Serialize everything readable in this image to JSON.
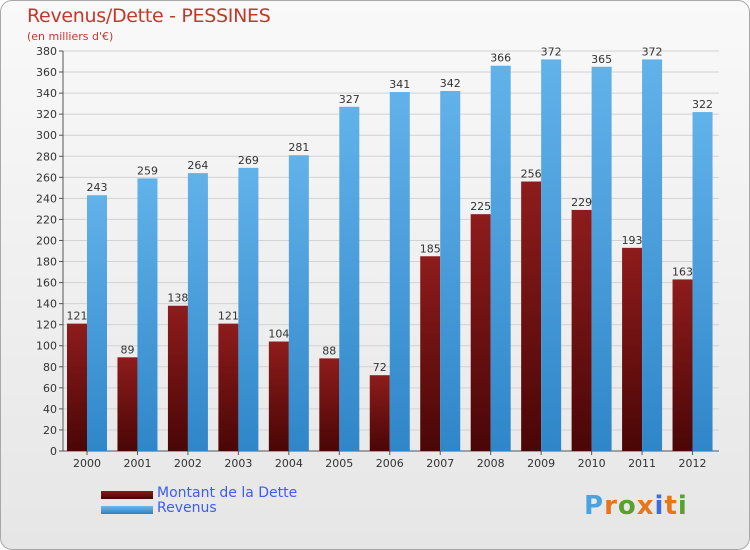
{
  "header": {
    "title": "Revenus/Dette - PESSINES",
    "subtitle": "(en milliers d'€)"
  },
  "legend": {
    "items": [
      {
        "label": "Montant de la Dette",
        "color": "#6b0f0f"
      },
      {
        "label": "Revenus",
        "color": "#4aa3e0"
      }
    ]
  },
  "logo": {
    "text": "Proxiti",
    "letter_colors": [
      "#4aa3e0",
      "#e8741c",
      "#5aa02c",
      "#e8741c",
      "#3f6cd8",
      "#e8741c",
      "#5aa02c"
    ]
  },
  "chart_data": {
    "type": "bar",
    "title": "Revenus/Dette - PESSINES",
    "subtitle": "(en milliers d'€)",
    "categories": [
      "2000",
      "2001",
      "2002",
      "2003",
      "2004",
      "2005",
      "2006",
      "2007",
      "2008",
      "2009",
      "2010",
      "2011",
      "2012"
    ],
    "series": [
      {
        "name": "Montant de la Dette",
        "color": "#6b0f0f",
        "values": [
          121,
          89,
          138,
          121,
          104,
          88,
          72,
          185,
          225,
          256,
          229,
          193,
          163
        ]
      },
      {
        "name": "Revenus",
        "color": "#4aa3e0",
        "values": [
          243,
          259,
          264,
          269,
          281,
          327,
          341,
          342,
          366,
          372,
          365,
          372,
          322
        ]
      }
    ],
    "yticks": [
      0,
      20,
      40,
      60,
      80,
      100,
      120,
      140,
      160,
      180,
      200,
      220,
      240,
      260,
      280,
      300,
      320,
      340,
      360,
      380
    ],
    "ylim": [
      0,
      380
    ],
    "grid": true,
    "legend_position": "bottom-left"
  }
}
